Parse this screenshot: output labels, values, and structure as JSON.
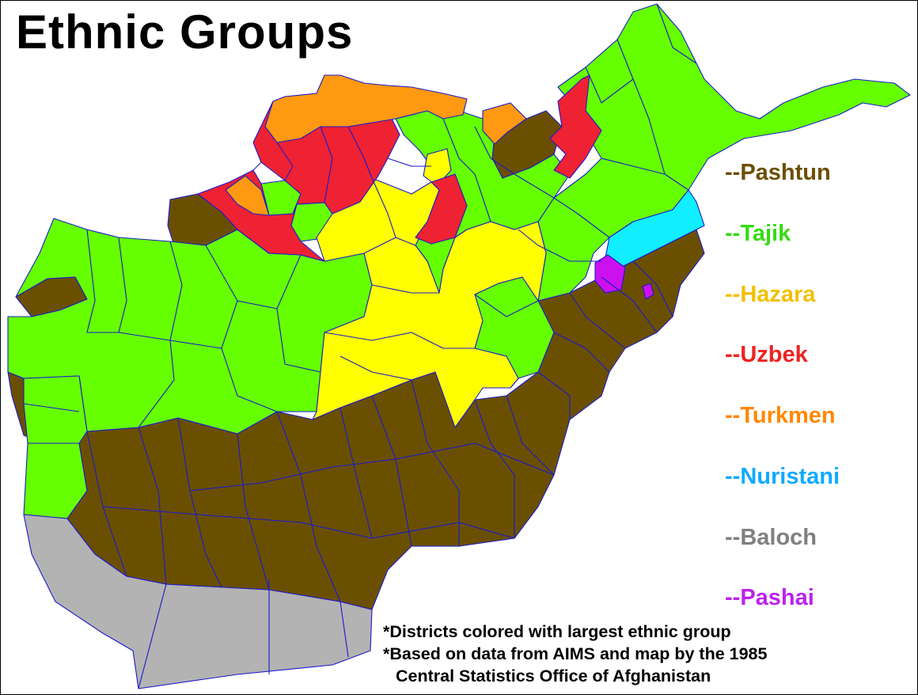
{
  "title": "Ethnic Groups",
  "legend": [
    {
      "label": "--Pashtun",
      "color": "#6b4f00"
    },
    {
      "label": "--Tajik",
      "color": "#33dd11"
    },
    {
      "label": "--Hazara",
      "color": "#f2c000"
    },
    {
      "label": "--Uzbek",
      "color": "#ee2222"
    },
    {
      "label": "--Turkmen",
      "color": "#ff8800"
    },
    {
      "label": "--Nuristani",
      "color": "#11aaff"
    },
    {
      "label": "--Baloch",
      "color": "#808080"
    },
    {
      "label": "--Pashai",
      "color": "#bb22ee"
    }
  ],
  "notes": [
    "*Districts colored with largest ethnic group",
    "*Based on data from AIMS and map by the 1985",
    "Central Statistics Office of Afghanistan"
  ],
  "map_colors": {
    "pashtun": "#6b4f00",
    "tajik": "#66ff00",
    "hazara": "#ffff00",
    "uzbek": "#ee2233",
    "turkmen": "#ff9911",
    "nuristani": "#11eeff",
    "baloch": "#b3b3b3",
    "pashai": "#cc11ee",
    "border": "#1a1acc"
  }
}
